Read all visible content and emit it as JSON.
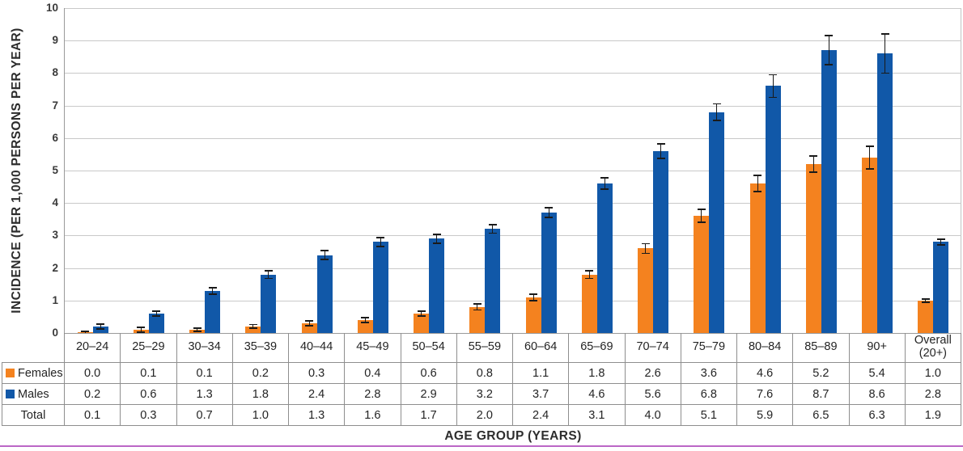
{
  "colors": {
    "females": "#F4821F",
    "males": "#1158A8",
    "gridline": "#C9C9C9",
    "axis": "#9A9A9A",
    "table_border": "#8E8E8E",
    "error_bar": "#1A1A1A",
    "bottom_rule": "#BB66C6",
    "text": "#2D2D2D"
  },
  "chart_data": {
    "type": "bar",
    "title": "",
    "xlabel": "AGE GROUP (YEARS)",
    "ylabel": "INCIDENCE (PER 1,000 PERSONS PER YEAR)",
    "ylim": [
      0,
      10
    ],
    "yticks": [
      0,
      1,
      2,
      3,
      4,
      5,
      6,
      7,
      8,
      9,
      10
    ],
    "grid": true,
    "error_bars": true,
    "legend_position": "table-row-labels",
    "categories": [
      "20–24",
      "25–29",
      "30–34",
      "35–39",
      "40–44",
      "45–49",
      "50–54",
      "55–59",
      "60–64",
      "65–69",
      "70–74",
      "75–79",
      "80–84",
      "85–89",
      "90+",
      "Overall (20+)"
    ],
    "series": [
      {
        "name": "Females",
        "color": "#F4821F",
        "values": [
          0.0,
          0.1,
          0.1,
          0.2,
          0.3,
          0.4,
          0.6,
          0.8,
          1.1,
          1.8,
          2.6,
          3.6,
          4.6,
          5.2,
          5.4,
          1.0
        ],
        "errors": [
          0.05,
          0.08,
          0.05,
          0.06,
          0.08,
          0.08,
          0.08,
          0.09,
          0.1,
          0.12,
          0.15,
          0.2,
          0.25,
          0.25,
          0.35,
          0.05
        ]
      },
      {
        "name": "Males",
        "color": "#1158A8",
        "values": [
          0.2,
          0.6,
          1.3,
          1.8,
          2.4,
          2.8,
          2.9,
          3.2,
          3.7,
          4.6,
          5.6,
          6.8,
          7.6,
          8.7,
          8.6,
          2.8
        ],
        "errors": [
          0.07,
          0.08,
          0.1,
          0.12,
          0.13,
          0.14,
          0.13,
          0.13,
          0.15,
          0.18,
          0.22,
          0.25,
          0.35,
          0.45,
          0.6,
          0.08
        ]
      }
    ],
    "table": {
      "row_labels": [
        "Females",
        "Males",
        "Total"
      ],
      "rows": [
        [
          "0.0",
          "0.1",
          "0.1",
          "0.2",
          "0.3",
          "0.4",
          "0.6",
          "0.8",
          "1.1",
          "1.8",
          "2.6",
          "3.6",
          "4.6",
          "5.2",
          "5.4",
          "1.0"
        ],
        [
          "0.2",
          "0.6",
          "1.3",
          "1.8",
          "2.4",
          "2.8",
          "2.9",
          "3.2",
          "3.7",
          "4.6",
          "5.6",
          "6.8",
          "7.6",
          "8.7",
          "8.6",
          "2.8"
        ],
        [
          "0.1",
          "0.3",
          "0.7",
          "1.0",
          "1.3",
          "1.6",
          "1.7",
          "2.0",
          "2.4",
          "3.1",
          "4.0",
          "5.1",
          "5.9",
          "6.5",
          "6.3",
          "1.9"
        ]
      ]
    }
  }
}
